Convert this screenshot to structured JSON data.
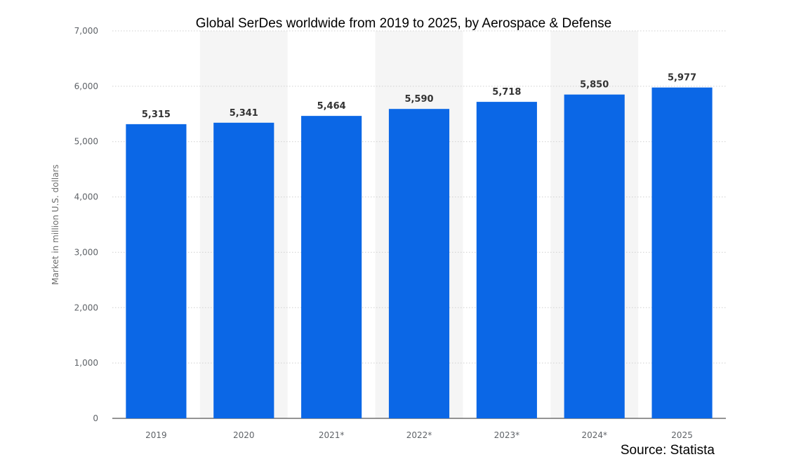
{
  "chart_data": {
    "type": "bar",
    "title": "Global SerDes worldwide from 2019 to 2025, by Aerospace & Defense",
    "xlabel": "",
    "ylabel": "Market in million U.S. dollars",
    "categories": [
      "2019",
      "2020",
      "2021*",
      "2022*",
      "2023*",
      "2024*",
      "2025"
    ],
    "values": [
      5315,
      5341,
      5464,
      5590,
      5718,
      5850,
      5977
    ],
    "value_labels": [
      "5,315",
      "5,341",
      "5,464",
      "5,590",
      "5,718",
      "5,850",
      "5,977"
    ],
    "ylim": [
      0,
      7000
    ],
    "yticks": [
      0,
      1000,
      2000,
      3000,
      4000,
      5000,
      6000,
      7000
    ],
    "ytick_labels": [
      "0",
      "1,000",
      "2,000",
      "3,000",
      "4,000",
      "5,000",
      "6,000",
      "7,000"
    ],
    "grid": true,
    "legend": "none",
    "bar_color": "#0b67e6",
    "band_color": "#f5f5f5"
  },
  "source_label": "Source: Statista"
}
